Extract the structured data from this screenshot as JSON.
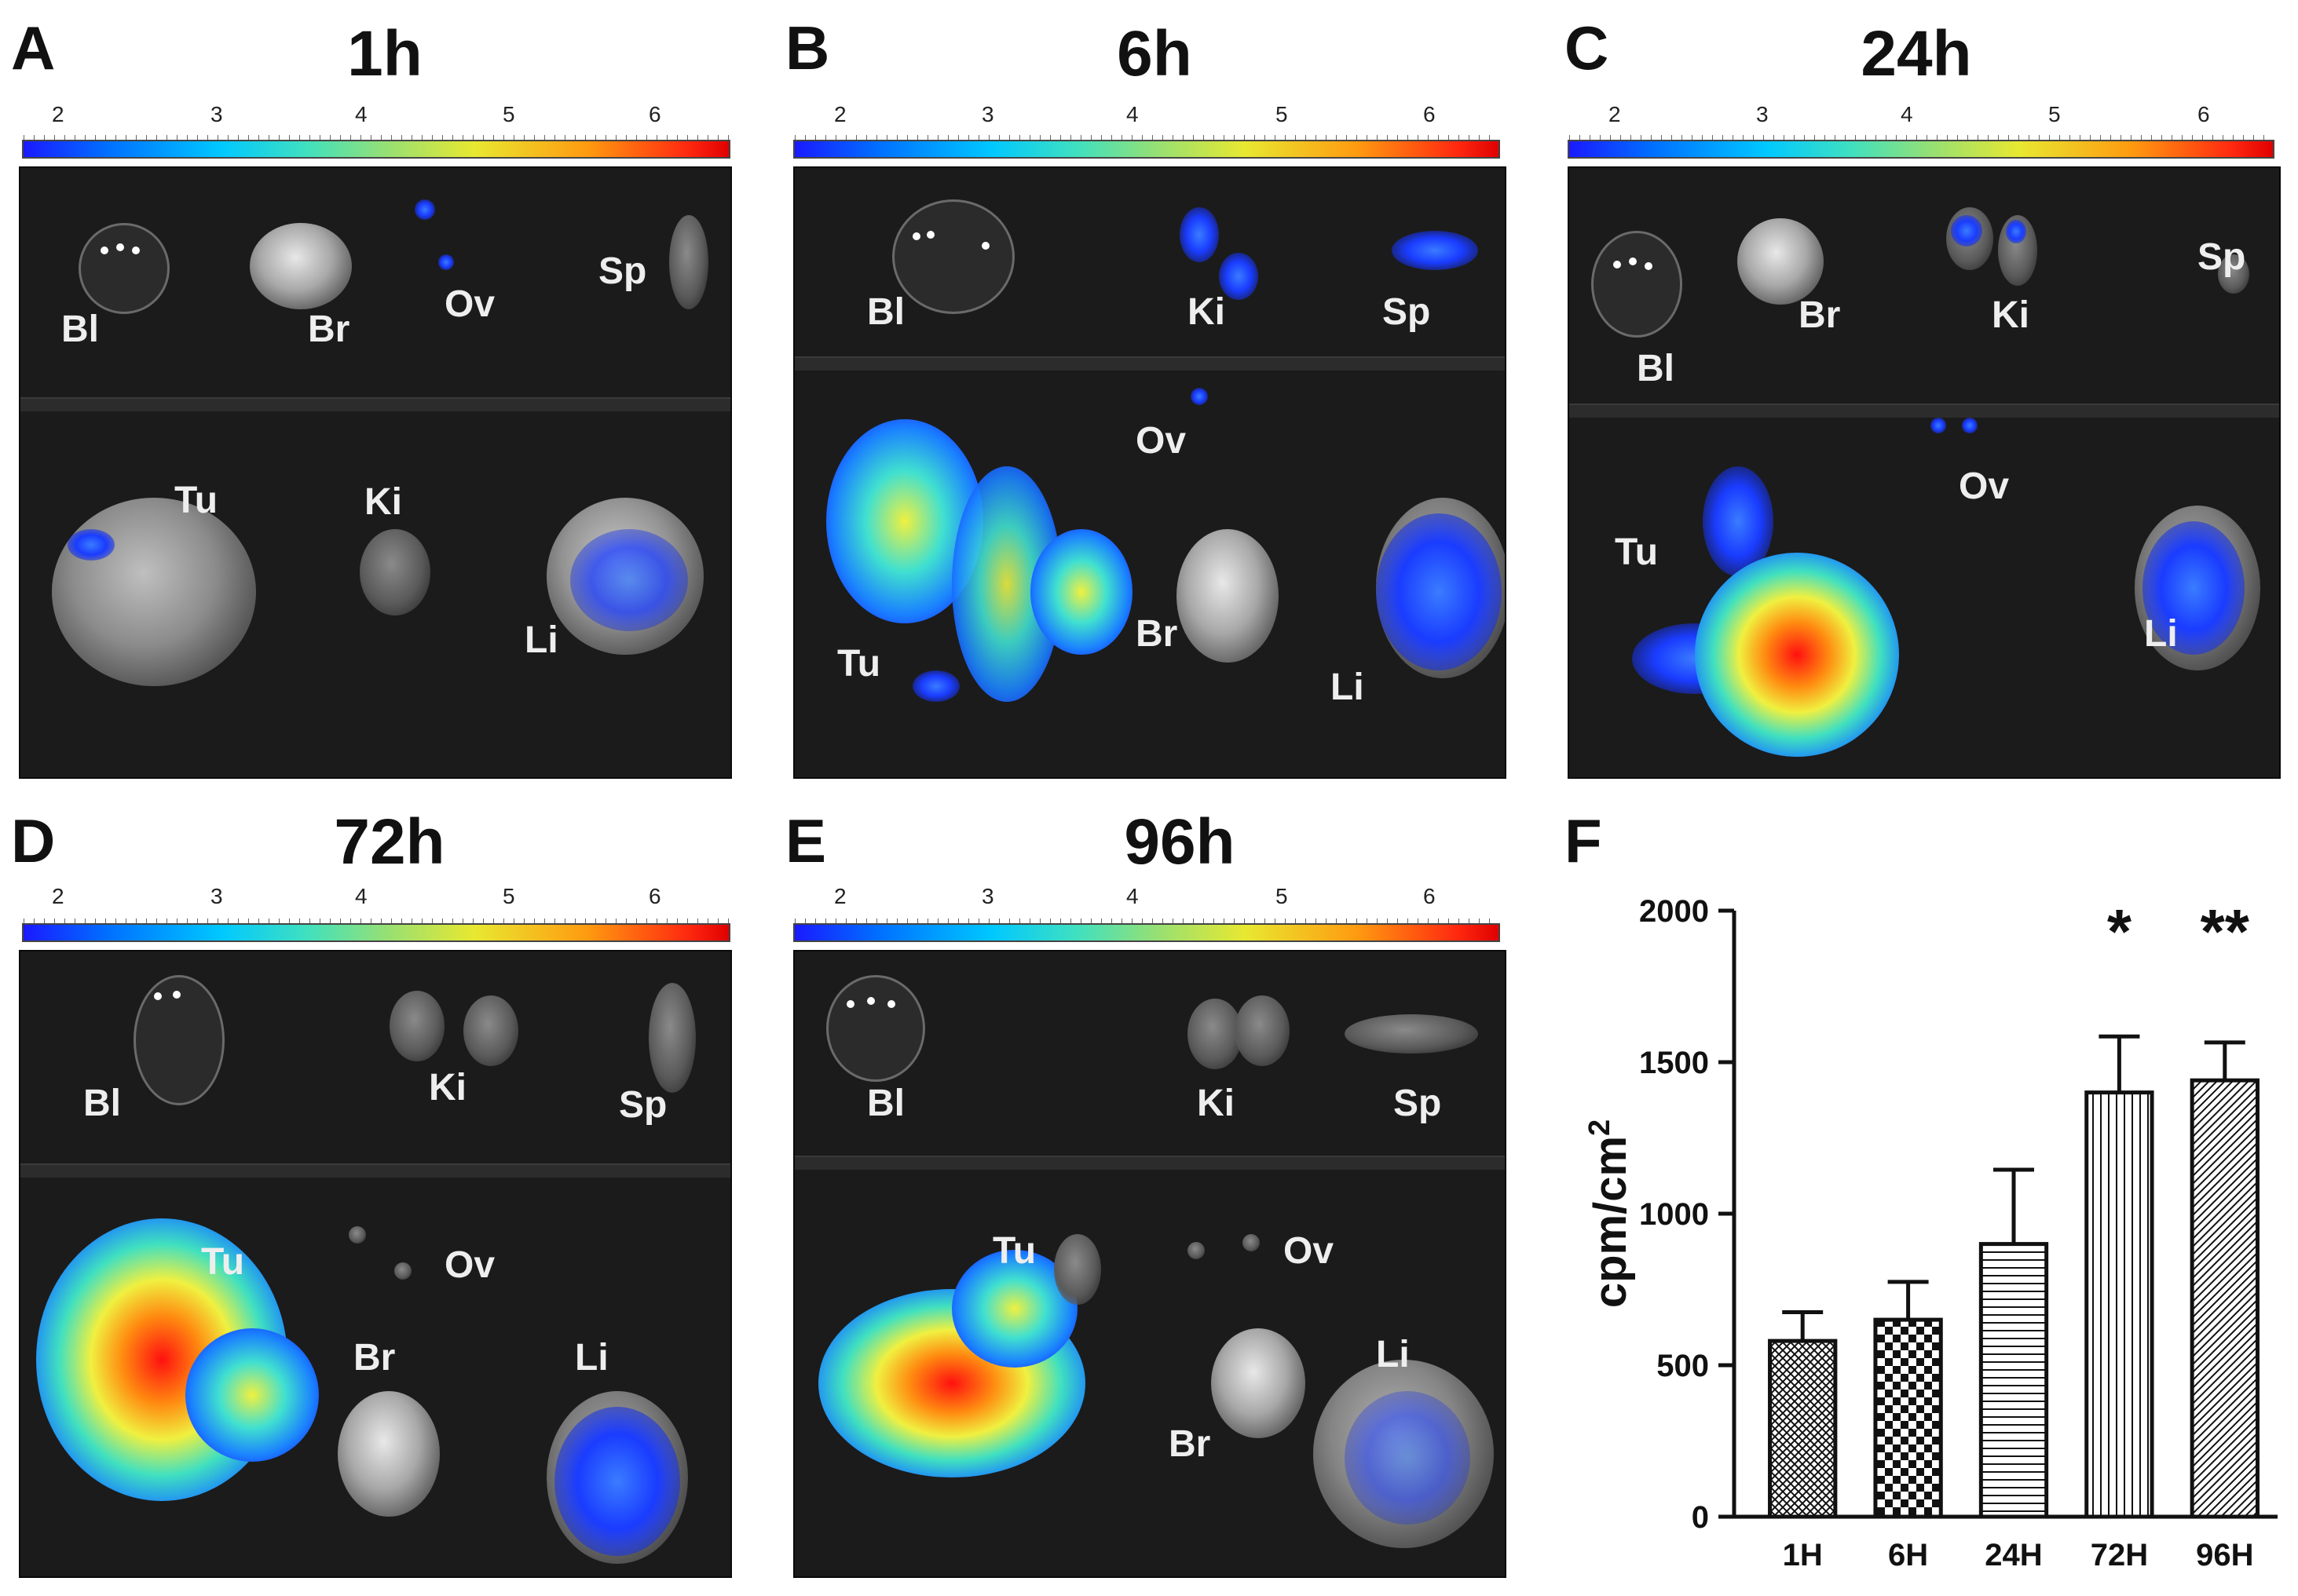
{
  "figure": {
    "colorbar_ticks": [
      "2",
      "3",
      "4",
      "5",
      "6"
    ],
    "panels": [
      {
        "letter": "A",
        "title": "1h",
        "labels": {
          "bl": "Bl",
          "br": "Br",
          "ov": "Ov",
          "sp": "Sp",
          "tu": "Tu",
          "ki": "Ki",
          "li": "Li"
        }
      },
      {
        "letter": "B",
        "title": "6h",
        "labels": {
          "bl": "Bl",
          "ki": "Ki",
          "sp": "Sp",
          "ov": "Ov",
          "tu": "Tu",
          "br": "Br",
          "li": "Li"
        }
      },
      {
        "letter": "C",
        "title": "24h",
        "labels": {
          "bl": "Bl",
          "br": "Br",
          "ki": "Ki",
          "sp": "Sp",
          "ov": "Ov",
          "tu": "Tu",
          "li": "Li"
        }
      },
      {
        "letter": "D",
        "title": "72h",
        "labels": {
          "bl": "Bl",
          "ki": "Ki",
          "sp": "Sp",
          "tu": "Tu",
          "ov": "Ov",
          "br": "Br",
          "li": "Li"
        }
      },
      {
        "letter": "E",
        "title": "96h",
        "labels": {
          "bl": "Bl",
          "ki": "Ki",
          "sp": "Sp",
          "tu": "Tu",
          "ov": "Ov",
          "br": "Br",
          "li": "Li"
        }
      }
    ],
    "panel_f_letter": "F",
    "colors": {
      "bar_fill": "#ffffff",
      "bar_edge": "#111111",
      "background": "#ffffff"
    }
  },
  "chart_data": {
    "type": "bar",
    "categories": [
      "1H",
      "6H",
      "24H",
      "72H",
      "96H"
    ],
    "values": [
      580,
      650,
      900,
      1400,
      1440
    ],
    "errors": [
      95,
      125,
      245,
      185,
      125
    ],
    "significance": [
      "",
      "",
      "",
      "*",
      "**"
    ],
    "patterns": [
      "crosshatch",
      "checker",
      "horizontal",
      "vertical",
      "diagonal"
    ],
    "ylabel": "cpm/cm2",
    "xlabel": "",
    "title": "",
    "ylim": [
      0,
      2000
    ],
    "yticks": [
      0,
      500,
      1000,
      1500,
      2000
    ],
    "grid": false
  }
}
